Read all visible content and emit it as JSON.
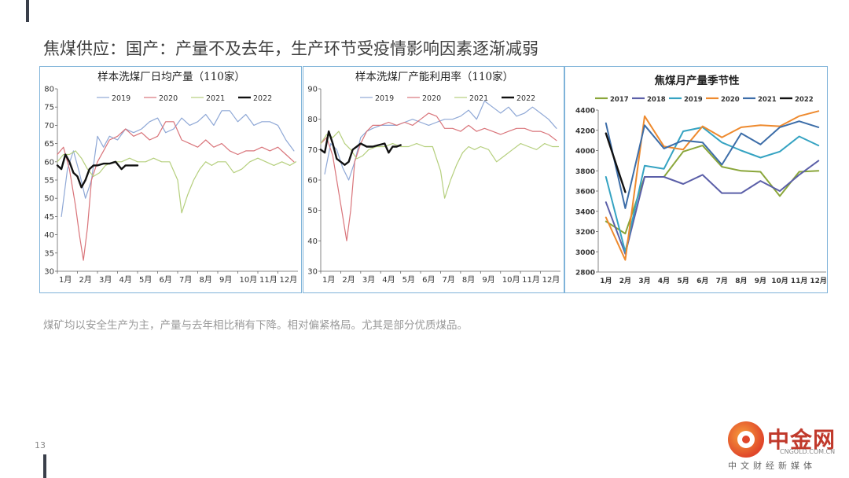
{
  "slide": {
    "title": "焦煤供应：国产：产量不及去年，生产环节受疫情影响因素逐渐减弱",
    "caption": "煤矿均以安全生产为主，产量与去年相比稍有下降。相对偏紧格局。尤其是部分优质煤品。",
    "page_number": "13"
  },
  "logo": {
    "name": "中金网",
    "domain": "CNGOLD.COM.CN",
    "tagline": "中文财经新媒体",
    "color": "#c0392b"
  },
  "colors": {
    "2017": "#8aa63a",
    "2018": "#5b5fa8",
    "2019": "#35a3c2",
    "2020": "#ee8a2e",
    "2021": "#3c6da8",
    "2022": "#111111"
  },
  "chart_data": [
    {
      "type": "line",
      "title": "样本洗煤厂日均产量（110家）",
      "xticks": [
        "1月",
        "2月",
        "3月",
        "4月",
        "5月",
        "6月",
        "7月",
        "8月",
        "9月",
        "10月",
        "11月",
        "12月"
      ],
      "ylim": [
        30,
        80
      ],
      "yticks": [
        30,
        35,
        40,
        45,
        50,
        55,
        60,
        65,
        70,
        75,
        80
      ],
      "legend": "top",
      "series": [
        {
          "name": "2019",
          "color": "#8fa8d6",
          "x": [
            1.2,
            1.5,
            1.8,
            2.1,
            2.4,
            2.7,
            3.0,
            3.3,
            3.6,
            4.0,
            4.4,
            4.8,
            5.2,
            5.6,
            6.0,
            6.4,
            6.8,
            7.2,
            7.6,
            8.0,
            8.4,
            8.8,
            9.2,
            9.6,
            10.0,
            10.4,
            10.8,
            11.2,
            11.6,
            12.0,
            12.4,
            12.8
          ],
          "y": [
            45,
            58,
            63,
            57,
            50,
            55,
            67,
            64,
            67,
            66,
            69,
            68,
            69,
            71,
            72,
            68,
            69,
            72,
            70,
            71,
            73,
            70,
            74,
            74,
            71,
            73,
            70,
            71,
            71,
            70,
            66,
            63
          ]
        },
        {
          "name": "2020",
          "color": "#d9747a",
          "x": [
            1.0,
            1.3,
            1.6,
            1.9,
            2.1,
            2.3,
            2.5,
            2.7,
            3.0,
            3.3,
            3.6,
            4.0,
            4.4,
            4.8,
            5.2,
            5.6,
            6.0,
            6.4,
            6.8,
            7.2,
            7.6,
            8.0,
            8.4,
            8.8,
            9.2,
            9.6,
            10.0,
            10.4,
            10.8,
            11.2,
            11.6,
            12.0,
            12.4,
            12.8
          ],
          "y": [
            62,
            64,
            58,
            48,
            40,
            33,
            42,
            55,
            60,
            63,
            66,
            67,
            69,
            67,
            68,
            66,
            67,
            71,
            71,
            66,
            65,
            64,
            66,
            64,
            65,
            63,
            62,
            63,
            63,
            64,
            63,
            64,
            62,
            60
          ]
        },
        {
          "name": "2021",
          "color": "#b5cf7d",
          "x": [
            1.0,
            1.3,
            1.6,
            1.9,
            2.2,
            2.5,
            2.8,
            3.1,
            3.4,
            3.8,
            4.2,
            4.6,
            5.0,
            5.4,
            5.8,
            6.2,
            6.6,
            7.0,
            7.2,
            7.5,
            7.8,
            8.1,
            8.4,
            8.7,
            9.0,
            9.4,
            9.8,
            10.2,
            10.6,
            11.0,
            11.4,
            11.8,
            12.2,
            12.6,
            12.9
          ],
          "y": [
            60,
            62,
            62,
            63,
            61,
            58,
            56,
            57,
            59,
            60,
            60,
            61,
            60,
            60,
            61,
            60,
            60,
            55,
            46,
            51,
            55,
            58,
            60,
            59,
            60,
            60,
            57,
            58,
            60,
            61,
            60,
            59,
            60,
            59,
            60
          ]
        },
        {
          "name": "2022",
          "color": "#111111",
          "x": [
            1.0,
            1.2,
            1.4,
            1.6,
            1.8,
            2.0,
            2.2,
            2.4,
            2.6,
            2.8,
            3.0,
            3.3,
            3.6,
            3.9,
            4.2,
            4.4,
            4.6,
            4.8,
            5.0
          ],
          "y": [
            59,
            58,
            62,
            60,
            57,
            56,
            53,
            55,
            58,
            59,
            59,
            59.5,
            59.5,
            60,
            58,
            59,
            59,
            59,
            59
          ]
        }
      ]
    },
    {
      "type": "line",
      "title": "样本洗煤厂产能利用率（110家）",
      "xticks": [
        "1月",
        "2月",
        "3月",
        "4月",
        "5月",
        "6月",
        "7月",
        "8月",
        "9月",
        "10月",
        "11月",
        "12月"
      ],
      "ylim": [
        30,
        90
      ],
      "yticks": [
        30,
        40,
        50,
        60,
        70,
        80,
        90
      ],
      "legend": "top",
      "series": [
        {
          "name": "2019",
          "color": "#8fa8d6",
          "x": [
            1.2,
            1.5,
            1.8,
            2.1,
            2.4,
            2.7,
            3.0,
            3.3,
            3.6,
            4.0,
            4.4,
            4.8,
            5.2,
            5.6,
            6.0,
            6.4,
            6.8,
            7.2,
            7.6,
            8.0,
            8.4,
            8.8,
            9.2,
            9.6,
            10.0,
            10.4,
            10.8,
            11.2,
            11.6,
            12.0,
            12.4,
            12.8
          ],
          "y": [
            62,
            72,
            70,
            64,
            60,
            66,
            74,
            76,
            77,
            78,
            78,
            78,
            79,
            80,
            79,
            78,
            79,
            80,
            80,
            81,
            83,
            80,
            86,
            84,
            82,
            84,
            81,
            82,
            84,
            82,
            80,
            77
          ]
        },
        {
          "name": "2020",
          "color": "#d9747a",
          "x": [
            1.0,
            1.3,
            1.6,
            1.9,
            2.1,
            2.3,
            2.5,
            2.7,
            3.0,
            3.3,
            3.6,
            4.0,
            4.4,
            4.8,
            5.2,
            5.6,
            6.0,
            6.4,
            6.8,
            7.2,
            7.6,
            8.0,
            8.4,
            8.8,
            9.2,
            9.6,
            10.0,
            10.4,
            10.8,
            11.2,
            11.6,
            12.0,
            12.4,
            12.8
          ],
          "y": [
            72,
            74,
            68,
            56,
            48,
            40,
            50,
            66,
            72,
            76,
            78,
            78,
            79,
            78,
            79,
            78,
            80,
            82,
            81,
            77,
            77,
            76,
            78,
            76,
            77,
            76,
            75,
            76,
            77,
            77,
            76,
            76,
            75,
            73
          ]
        },
        {
          "name": "2021",
          "color": "#b5cf7d",
          "x": [
            1.0,
            1.3,
            1.6,
            1.9,
            2.2,
            2.5,
            2.8,
            3.1,
            3.4,
            3.8,
            4.2,
            4.6,
            5.0,
            5.4,
            5.8,
            6.2,
            6.6,
            7.0,
            7.2,
            7.5,
            7.8,
            8.1,
            8.4,
            8.7,
            9.0,
            9.4,
            9.8,
            10.2,
            10.6,
            11.0,
            11.4,
            11.8,
            12.2,
            12.6,
            12.9
          ],
          "y": [
            72,
            75,
            74,
            76,
            72,
            70,
            67,
            68,
            70,
            71,
            71,
            72,
            71,
            71,
            72,
            71,
            71,
            63,
            54,
            60,
            65,
            69,
            71,
            70,
            71,
            70,
            66,
            68,
            70,
            72,
            71,
            70,
            72,
            71,
            71
          ]
        },
        {
          "name": "2022",
          "color": "#111111",
          "x": [
            1.0,
            1.2,
            1.4,
            1.6,
            1.8,
            2.0,
            2.2,
            2.4,
            2.6,
            2.8,
            3.0,
            3.3,
            3.6,
            3.9,
            4.2,
            4.4,
            4.6,
            4.8,
            5.0
          ],
          "y": [
            70,
            69,
            76,
            72,
            67,
            66,
            65,
            66,
            70,
            71,
            72,
            71,
            71,
            71.5,
            72,
            69,
            71,
            71,
            71.5
          ]
        }
      ]
    },
    {
      "type": "line",
      "title": "焦煤月产量季节性",
      "xticks": [
        "1月",
        "2月",
        "3月",
        "4月",
        "5月",
        "6月",
        "7月",
        "8月",
        "9月",
        "10月",
        "11月",
        "12月"
      ],
      "ylim": [
        2800,
        4400
      ],
      "yticks": [
        2800,
        3000,
        3200,
        3400,
        3600,
        3800,
        4000,
        4200,
        4400
      ],
      "legend": "top",
      "series": [
        {
          "name": "2017",
          "color": "#8aa63a",
          "x": [
            1,
            2,
            3,
            4,
            5,
            6,
            7,
            8,
            9,
            10,
            11,
            12
          ],
          "y": [
            3300,
            3180,
            3740,
            3740,
            3990,
            4050,
            3840,
            3800,
            3790,
            3550,
            3790,
            3800
          ]
        },
        {
          "name": "2018",
          "color": "#5b5fa8",
          "x": [
            1,
            2,
            3,
            4,
            5,
            6,
            7,
            8,
            9,
            10,
            11,
            12
          ],
          "y": [
            3490,
            2980,
            3740,
            3740,
            3670,
            3760,
            3580,
            3580,
            3700,
            3600,
            3760,
            3900
          ]
        },
        {
          "name": "2019",
          "color": "#35a3c2",
          "x": [
            1,
            2,
            3,
            4,
            5,
            6,
            7,
            8,
            9,
            10,
            11,
            12
          ],
          "y": [
            3740,
            3000,
            3850,
            3820,
            4190,
            4230,
            4080,
            4000,
            3930,
            3990,
            4140,
            4050
          ]
        },
        {
          "name": "2020",
          "color": "#ee8a2e",
          "x": [
            1,
            2,
            3,
            4,
            5,
            6,
            7,
            8,
            9,
            10,
            11,
            12
          ],
          "y": [
            3340,
            2920,
            4340,
            4040,
            4010,
            4240,
            4130,
            4230,
            4250,
            4240,
            4340,
            4390
          ]
        },
        {
          "name": "2021",
          "color": "#3c6da8",
          "x": [
            1,
            2,
            3,
            4,
            5,
            6,
            7,
            8,
            9,
            10,
            11,
            12
          ],
          "y": [
            4270,
            3430,
            4250,
            4020,
            4100,
            4080,
            3860,
            4170,
            4060,
            4230,
            4290,
            4230
          ]
        },
        {
          "name": "2022",
          "color": "#111111",
          "x": [
            1,
            2
          ],
          "y": [
            4170,
            3590
          ]
        }
      ]
    }
  ]
}
